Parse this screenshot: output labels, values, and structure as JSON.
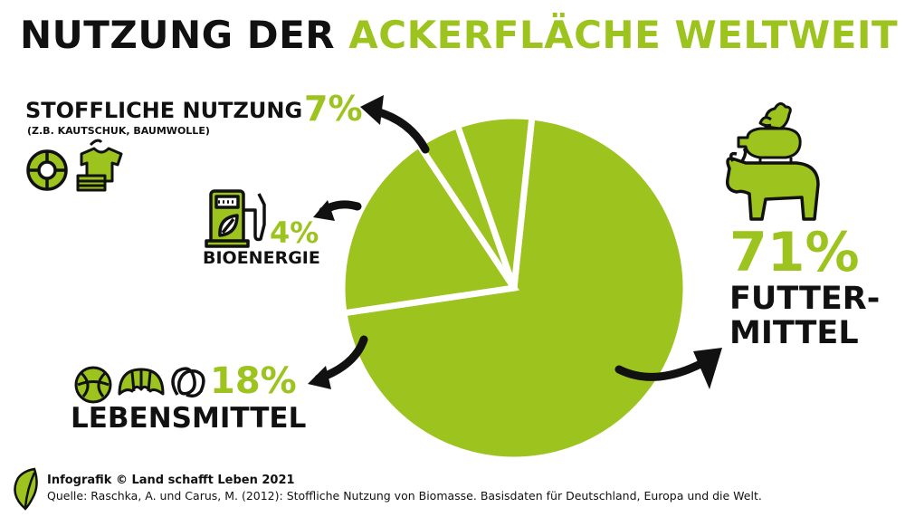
{
  "title": {
    "part1": "NUTZUNG DER",
    "part2": "ACKERFLÄCHE WELTWEIT"
  },
  "colors": {
    "accent": "#9dc31f",
    "dark": "#111111",
    "icon_fill": "#9dc31f"
  },
  "chart_data": {
    "type": "pie",
    "title": "NUTZUNG DER ACKERFLÄCHE WELTWEIT",
    "unit": "%",
    "slices": [
      {
        "key": "futter",
        "label": "FUTTERMITTEL",
        "label_line1": "FUTTER-",
        "label_line2": "MITTEL",
        "value": 71,
        "display": "71%"
      },
      {
        "key": "lebens",
        "label": "LEBENSMITTEL",
        "value": 18,
        "display": "18%"
      },
      {
        "key": "bio",
        "label": "BIOENERGIE",
        "value": 4,
        "display": "4%"
      },
      {
        "key": "stoff",
        "label": "STOFFLICHE NUTZUNG",
        "sublabel": "(Z.B. KAUTSCHUK, BAUMWOLLE)",
        "value": 7,
        "display": "7%"
      }
    ]
  },
  "icons": {
    "stoff": [
      "tire-icon",
      "clothing-icon"
    ],
    "bio": [
      "fuel-pump-icon"
    ],
    "lebens": [
      "bread-ball-icon",
      "croissant-icon",
      "pretzel-icon"
    ],
    "futter": [
      "chicken-icon",
      "pig-icon",
      "cow-icon"
    ]
  },
  "footer": {
    "credit": "Infografik © Land schafft Leben 2021",
    "source": "Quelle: Raschka, A. und Carus, M. (2012): Stoffliche Nutzung von Biomasse. Basisdaten für Deutschland, Europa und die Welt."
  }
}
